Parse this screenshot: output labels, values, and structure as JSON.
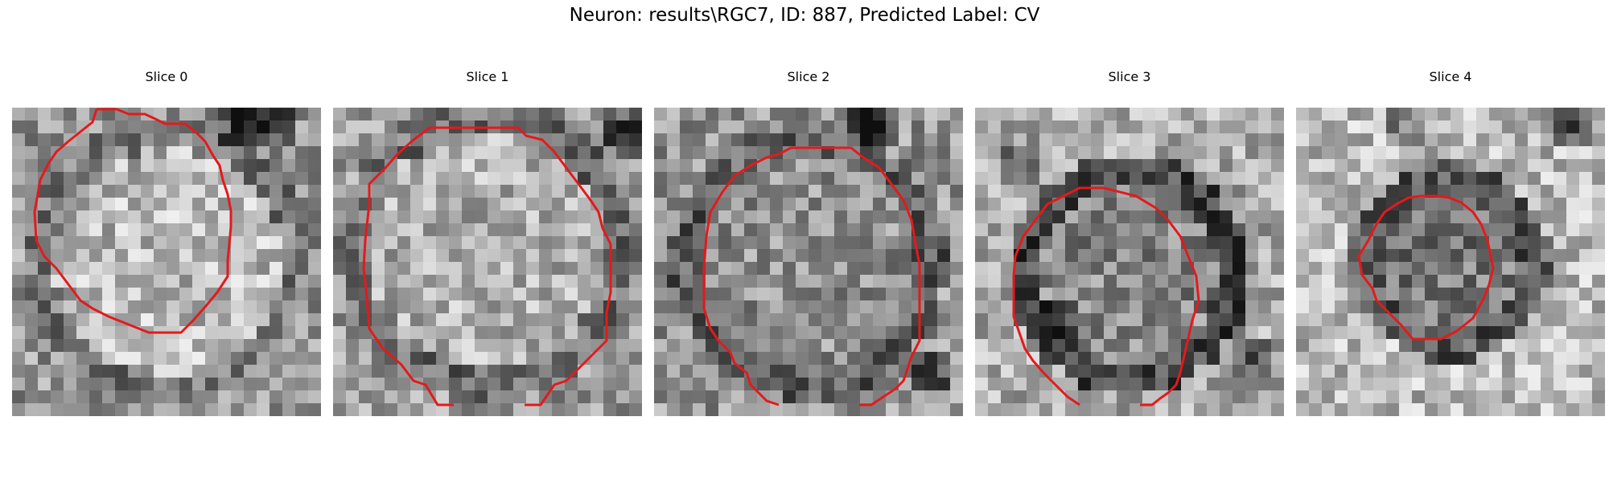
{
  "figure": {
    "title": "Neuron: results\\RGC7, ID: 887, Predicted Label: CV"
  },
  "slices": [
    {
      "title": "Slice 0",
      "contour_color": "#e31a1c"
    },
    {
      "title": "Slice 1",
      "contour_color": "#e31a1c"
    },
    {
      "title": "Slice 2",
      "contour_color": "#e31a1c"
    },
    {
      "title": "Slice 3",
      "contour_color": "#e31a1c"
    },
    {
      "title": "Slice 4",
      "contour_color": "#e31a1c"
    }
  ]
}
